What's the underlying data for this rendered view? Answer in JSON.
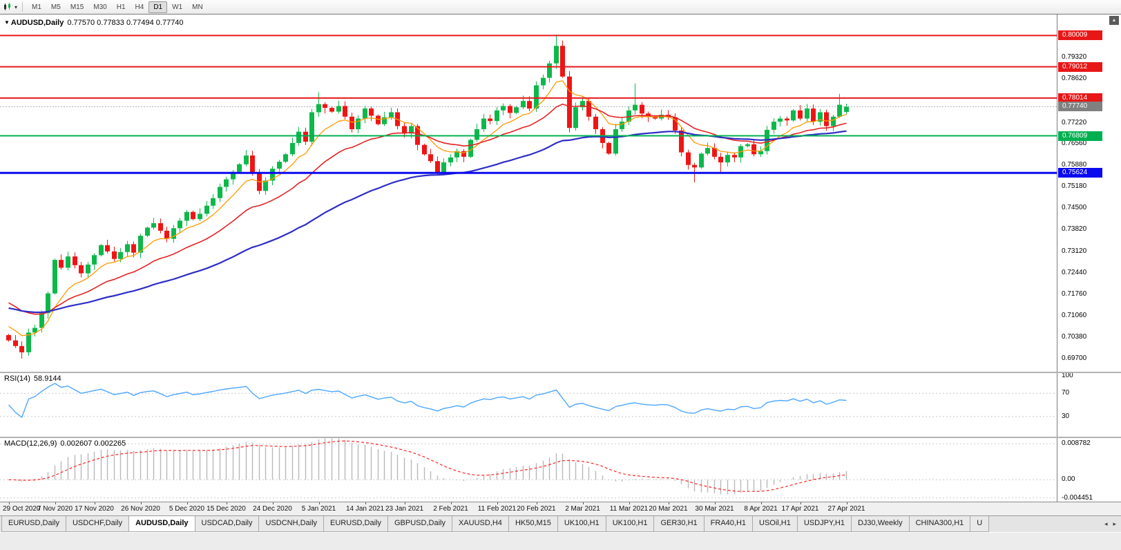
{
  "colors": {
    "bull": "#0db84b",
    "bear": "#f01414",
    "ma_fast": "#ff9900",
    "ma_mid": "#e32222",
    "ma_slow": "#2c2cc8",
    "level_red": "#e81717",
    "level_green": "#00b050",
    "level_blue": "#0a0af0",
    "rsi_line": "#4da6ff",
    "rsi_grid": "#c8c8c8",
    "macd_hist": "#b8b8b8",
    "macd_signal": "#ff2222",
    "current_price_bg": "#808080",
    "current_price_line": "#b0b0b0"
  },
  "toolbar": {
    "timeframes": [
      "M1",
      "M5",
      "M15",
      "M30",
      "H1",
      "H4",
      "D1",
      "W1",
      "MN"
    ],
    "active": "D1",
    "caret": "▾"
  },
  "main_panel": {
    "symbol_marker": "▼",
    "title": "AUDUSD,Daily",
    "ohlc": "0.77570 0.77833 0.77494 0.77740",
    "y_ticks": [
      0.7932,
      0.7862,
      0.7722,
      0.7656,
      0.7588,
      0.7518,
      0.745,
      0.7382,
      0.7312,
      0.7244,
      0.7176,
      0.7106,
      0.7038,
      0.697
    ],
    "levels": [
      {
        "price": 0.80009,
        "color_key": "level_red",
        "width": 2
      },
      {
        "price": 0.79012,
        "color_key": "level_red",
        "width": 2
      },
      {
        "price": 0.78014,
        "color_key": "level_red",
        "width": 2
      },
      {
        "price": 0.76809,
        "color_key": "level_green",
        "width": 2
      },
      {
        "price": 0.75624,
        "color_key": "level_blue",
        "width": 3
      }
    ],
    "current_price": 0.7774
  },
  "rsi_panel": {
    "title": "RSI(14)",
    "value": "58.9144",
    "ticks": [
      100,
      70,
      30
    ],
    "grid_levels": [
      70,
      30
    ]
  },
  "macd_panel": {
    "title": "MACD(12,26,9)",
    "values": "0.002607 0.002265",
    "ticks": [
      {
        "v": 0.008782,
        "label": "0.008782"
      },
      {
        "v": 0,
        "label": "0.00"
      },
      {
        "v": -0.004451,
        "label": "-0.004451"
      }
    ]
  },
  "tabs": {
    "items": [
      "EURUSD,Daily",
      "USDCHF,Daily",
      "AUDUSD,Daily",
      "USDCAD,Daily",
      "USDCNH,Daily",
      "EURUSD,Daily",
      "GBPUSD,Daily",
      "XAUUSD,H4",
      "HK50,M15",
      "UK100,H1",
      "UK100,H1",
      "GER30,H1",
      "FRA40,H1",
      "USOil,H1",
      "USDJPY,H1",
      "DJ30,Weekly",
      "CHINA300,H1",
      "U"
    ],
    "active_index": 2,
    "left_arrow": "◂",
    "right_arrow": "▸"
  },
  "chart_data": {
    "type": "candlestick",
    "title": "AUDUSD,Daily",
    "symbol": "AUDUSD",
    "timeframe": "Daily",
    "y_range_main": [
      0.6928,
      0.8068
    ],
    "macd_range": [
      -0.00535,
      0.0102
    ],
    "first_open": 0.7045,
    "closes": [
      0.7028,
      0.701,
      0.699,
      0.7053,
      0.7068,
      0.7115,
      0.7178,
      0.7285,
      0.726,
      0.7296,
      0.7268,
      0.7242,
      0.727,
      0.73,
      0.7332,
      0.7312,
      0.7288,
      0.731,
      0.7335,
      0.7308,
      0.7362,
      0.7388,
      0.7402,
      0.7378,
      0.7352,
      0.7386,
      0.741,
      0.7438,
      0.7415,
      0.7432,
      0.7458,
      0.7482,
      0.7518,
      0.7542,
      0.7566,
      0.759,
      0.7618,
      0.7562,
      0.7505,
      0.7538,
      0.7576,
      0.7598,
      0.7622,
      0.7658,
      0.7694,
      0.7662,
      0.7756,
      0.7782,
      0.777,
      0.7758,
      0.7776,
      0.7742,
      0.7702,
      0.7736,
      0.7768,
      0.7745,
      0.7718,
      0.774,
      0.7756,
      0.7712,
      0.7688,
      0.7712,
      0.7652,
      0.7622,
      0.76,
      0.7565,
      0.7596,
      0.7612,
      0.7632,
      0.7614,
      0.7668,
      0.7702,
      0.7736,
      0.7728,
      0.7762,
      0.7776,
      0.7754,
      0.7772,
      0.7792,
      0.7768,
      0.7842,
      0.7866,
      0.7912,
      0.7968,
      0.787,
      0.7706,
      0.7772,
      0.7792,
      0.7742,
      0.7702,
      0.7658,
      0.7624,
      0.7702,
      0.7726,
      0.7762,
      0.778,
      0.7752,
      0.7742,
      0.7736,
      0.7748,
      0.774,
      0.7698,
      0.7628,
      0.7588,
      0.758,
      0.7624,
      0.7642,
      0.7614,
      0.7596,
      0.762,
      0.7612,
      0.7648,
      0.7654,
      0.7622,
      0.7632,
      0.77,
      0.7726,
      0.7736,
      0.773,
      0.7762,
      0.7736,
      0.7768,
      0.7726,
      0.7756,
      0.7712,
      0.7742,
      0.778,
      0.7774
    ],
    "overrides": {
      "2": {
        "low": 0.697
      },
      "47": {
        "high": 0.782
      },
      "83": {
        "high": 0.8004
      },
      "84": {
        "high": 0.7985
      },
      "85": {
        "low": 0.7692
      },
      "95": {
        "high": 0.7848
      },
      "104": {
        "low": 0.7532
      },
      "108": {
        "low": 0.756
      },
      "126": {
        "high": 0.7815
      },
      "127": {
        "open": 0.7757,
        "high": 0.77833,
        "low": 0.77494
      }
    },
    "moving_averages": [
      {
        "name": "fast-ema",
        "period": 8,
        "seed": 0.7085,
        "color_key": "ma_fast",
        "width": 1.3
      },
      {
        "name": "mid-ema",
        "period": 21,
        "seed": 0.716,
        "color_key": "ma_mid",
        "width": 1.6
      },
      {
        "name": "slow-ema",
        "period": 55,
        "seed": 0.7135,
        "color_key": "ma_slow",
        "width": 2.2
      }
    ],
    "indicators": {
      "rsi": {
        "period": 14,
        "last": 58.9144
      },
      "macd": {
        "fast": 12,
        "slow": 26,
        "signal": 9,
        "last_main": 0.002607,
        "last_signal": 0.002265
      }
    },
    "x_labels": [
      {
        "i": 0,
        "t": "29 Oct 2020"
      },
      {
        "i": 7,
        "t": "7 Nov 2020"
      },
      {
        "i": 13,
        "t": "17 Nov 2020"
      },
      {
        "i": 20,
        "t": "26 Nov 2020"
      },
      {
        "i": 27,
        "t": "5 Dec 2020"
      },
      {
        "i": 33,
        "t": "15 Dec 2020"
      },
      {
        "i": 40,
        "t": "24 Dec 2020"
      },
      {
        "i": 47,
        "t": "5 Jan 2021"
      },
      {
        "i": 54,
        "t": "14 Jan 2021"
      },
      {
        "i": 60,
        "t": "23 Jan 2021"
      },
      {
        "i": 67,
        "t": "2 Feb 2021"
      },
      {
        "i": 74,
        "t": "11 Feb 2021"
      },
      {
        "i": 80,
        "t": "20 Feb 2021"
      },
      {
        "i": 87,
        "t": "2 Mar 2021"
      },
      {
        "i": 94,
        "t": "11 Mar 2021"
      },
      {
        "i": 100,
        "t": "20 Mar 2021"
      },
      {
        "i": 107,
        "t": "30 Mar 2021"
      },
      {
        "i": 114,
        "t": "8 Apr 2021"
      },
      {
        "i": 120,
        "t": "17 Apr 2021"
      },
      {
        "i": 127,
        "t": "27 Apr 2021"
      }
    ]
  }
}
